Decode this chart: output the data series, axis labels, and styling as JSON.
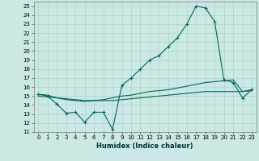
{
  "xlabel": "Humidex (Indice chaleur)",
  "bg_color": "#cce8e4",
  "grid_color": "#aad4d0",
  "line_color": "#006655",
  "xlim": [
    -0.5,
    23.5
  ],
  "ylim": [
    11,
    25.5
  ],
  "yticks": [
    11,
    12,
    13,
    14,
    15,
    16,
    17,
    18,
    19,
    20,
    21,
    22,
    23,
    24,
    25
  ],
  "xtick_labels": [
    "0",
    "1",
    "2",
    "3",
    "4",
    "5",
    "6",
    "7",
    "8",
    "9",
    "10",
    "11",
    "12",
    "13",
    "14",
    "15",
    "16",
    "17",
    "18",
    "19",
    "20",
    "21",
    "22",
    "23"
  ],
  "curve1_x": [
    0,
    1,
    2,
    3,
    4,
    5,
    6,
    7,
    8,
    9,
    10,
    11,
    12,
    13,
    14,
    15,
    16,
    17,
    18,
    19,
    20,
    21,
    22,
    23
  ],
  "curve1_y": [
    15.2,
    15.0,
    14.1,
    13.1,
    13.2,
    12.1,
    13.2,
    13.2,
    11.3,
    16.2,
    17.0,
    18.0,
    19.0,
    19.5,
    20.5,
    21.5,
    23.0,
    25.0,
    24.8,
    23.3,
    16.8,
    16.5,
    14.8,
    15.7
  ],
  "curve2_x": [
    0,
    1,
    2,
    3,
    4,
    5,
    6,
    7,
    8,
    9,
    10,
    11,
    12,
    13,
    14,
    15,
    16,
    17,
    18,
    19,
    20,
    21,
    22,
    23
  ],
  "curve2_y": [
    15.2,
    15.1,
    14.8,
    14.6,
    14.5,
    14.4,
    14.5,
    14.6,
    14.8,
    15.0,
    15.1,
    15.3,
    15.5,
    15.6,
    15.7,
    15.9,
    16.1,
    16.3,
    16.5,
    16.6,
    16.7,
    16.8,
    15.5,
    15.7
  ],
  "curve3_x": [
    0,
    1,
    2,
    3,
    4,
    5,
    6,
    7,
    8,
    9,
    10,
    11,
    12,
    13,
    14,
    15,
    16,
    17,
    18,
    19,
    20,
    21,
    22,
    23
  ],
  "curve3_y": [
    15.0,
    14.9,
    14.8,
    14.7,
    14.6,
    14.5,
    14.5,
    14.5,
    14.5,
    14.6,
    14.7,
    14.8,
    14.9,
    15.0,
    15.1,
    15.2,
    15.3,
    15.4,
    15.5,
    15.5,
    15.5,
    15.5,
    15.5,
    15.6
  ]
}
